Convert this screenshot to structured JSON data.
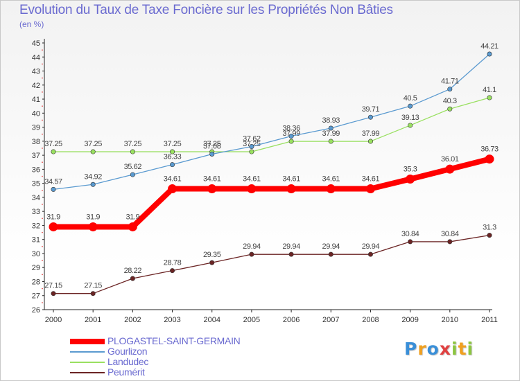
{
  "title": "Evolution du Taux de Taxe Foncière sur les Propriétés Non Bâties",
  "subtitle": "(en %)",
  "logo": {
    "letters": [
      {
        "ch": "P",
        "color": "#3a8fd8"
      },
      {
        "ch": "r",
        "color": "#f0a020"
      },
      {
        "ch": "o",
        "color": "#3a8fd8"
      },
      {
        "ch": "x",
        "color": "#e04040"
      },
      {
        "ch": "i",
        "color": "#8cc63f"
      },
      {
        "ch": "t",
        "color": "#f0a020"
      },
      {
        "ch": "i",
        "color": "#8cc63f"
      }
    ]
  },
  "chart_data": {
    "type": "line",
    "x": [
      "2000",
      "2001",
      "2002",
      "2003",
      "2004",
      "2005",
      "2006",
      "2007",
      "2008",
      "2009",
      "2010",
      "2011"
    ],
    "ylim": [
      26,
      45
    ],
    "yticks": [
      26,
      27,
      28,
      29,
      30,
      31,
      32,
      33,
      34,
      35,
      36,
      37,
      38,
      39,
      40,
      41,
      42,
      43,
      44,
      45
    ],
    "grid": false,
    "legend_position": "bottom-left",
    "series": [
      {
        "name": "Peumérit",
        "color": "#6b2424",
        "values": [
          27.15,
          27.15,
          28.22,
          28.78,
          29.35,
          29.94,
          29.94,
          29.94,
          29.94,
          30.84,
          30.84,
          31.3
        ],
        "labels": [
          "27.15",
          "27.15",
          "28.22",
          "28.78",
          "29.35",
          "29.94",
          "29.94",
          "29.94",
          "29.94",
          "30.84",
          "30.84",
          "31.3"
        ]
      },
      {
        "name": "Landudec",
        "color": "#99e060",
        "values": [
          37.25,
          37.25,
          37.25,
          37.25,
          37.25,
          37.25,
          37.99,
          37.99,
          37.99,
          39.13,
          40.3,
          41.1
        ],
        "labels": [
          "37.25",
          "37.25",
          "37.25",
          "37.25",
          "37.25",
          "37.25",
          "37.99",
          "37.99",
          "37.99",
          "39.13",
          "40.3",
          "41.1"
        ]
      },
      {
        "name": "Gourlizon",
        "color": "#5a9ad0",
        "values": [
          34.57,
          34.92,
          35.62,
          36.33,
          37.08,
          37.62,
          38.36,
          38.93,
          39.71,
          40.5,
          41.71,
          44.21
        ],
        "labels": [
          "34.57",
          "34.92",
          "35.62",
          "36.33",
          "37.08",
          "37.62",
          "38.36",
          "38.93",
          "39.71",
          "40.5",
          "41.71",
          "44.21"
        ]
      },
      {
        "name": "PLOGASTEL-SAINT-GERMAIN",
        "color": "#ff0000",
        "values": [
          31.9,
          31.9,
          31.9,
          34.61,
          34.61,
          34.61,
          34.61,
          34.61,
          34.61,
          35.3,
          36.01,
          36.73
        ],
        "labels": [
          "31.9",
          "31.9",
          "31.9",
          "34.61",
          "34.61",
          "34.61",
          "34.61",
          "34.61",
          "34.61",
          "35.3",
          "36.01",
          "36.73"
        ]
      }
    ],
    "legend_order": [
      "PLOGASTEL-SAINT-GERMAIN",
      "Gourlizon",
      "Landudec",
      "Peumérit"
    ]
  }
}
